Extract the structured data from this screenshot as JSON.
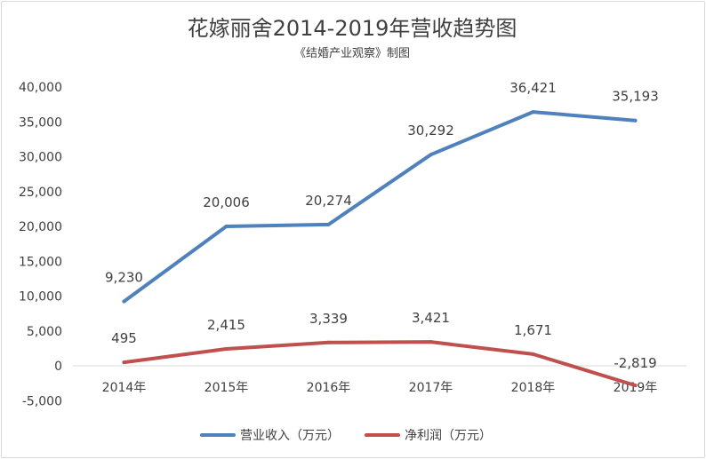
{
  "chart_data": {
    "type": "line",
    "title": "花嫁丽舍2014-2019年营收趋势图",
    "subtitle": "《结婚产业观察》制图",
    "categories": [
      "2014年",
      "2015年",
      "2016年",
      "2017年",
      "2018年",
      "2019年"
    ],
    "series": [
      {
        "name": "营业收入（万元）",
        "color": "#4f81bd",
        "values": [
          9230,
          20006,
          20274,
          30292,
          36421,
          35193
        ],
        "labels": [
          "9,230",
          "20,006",
          "20,274",
          "30,292",
          "36,421",
          "35,193"
        ]
      },
      {
        "name": "净利润（万元）",
        "color": "#c0504d",
        "values": [
          495,
          2415,
          3339,
          3421,
          1671,
          -2819
        ],
        "labels": [
          "495",
          "2,415",
          "3,339",
          "3,421",
          "1,671",
          "-2,819"
        ]
      }
    ],
    "y_ticks": [
      -5000,
      0,
      5000,
      10000,
      15000,
      20000,
      25000,
      30000,
      35000,
      40000
    ],
    "y_tick_labels": [
      "-5,000",
      "0",
      "5,000",
      "10,000",
      "15,000",
      "20,000",
      "25,000",
      "30,000",
      "35,000",
      "40,000"
    ],
    "ylim": [
      -5000,
      40000
    ],
    "grid": false,
    "legend_position": "bottom"
  }
}
